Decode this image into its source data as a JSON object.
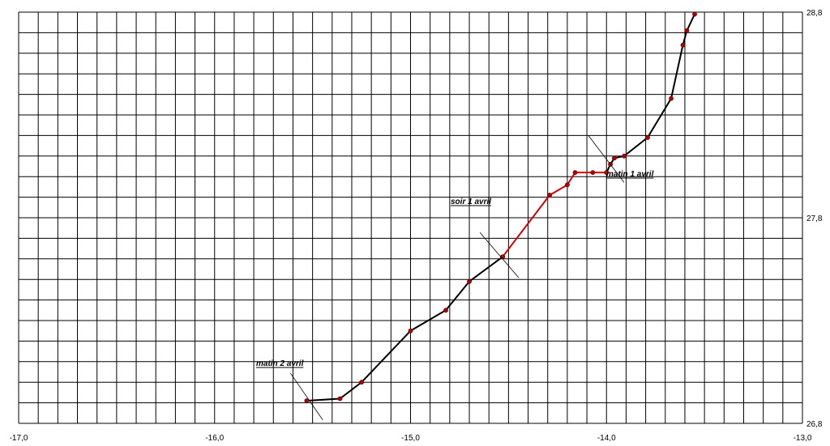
{
  "chart_data": {
    "type": "line",
    "title": "",
    "xlabel": "",
    "ylabel": "",
    "xlim": [
      -17.0,
      -13.0
    ],
    "ylim": [
      26.8,
      28.8
    ],
    "x_step": 0.1,
    "y_step": 0.1,
    "grid": true,
    "x_tick_labels": [
      {
        "value": -17.0,
        "label": "-17,0"
      },
      {
        "value": -16.0,
        "label": "-16,0"
      },
      {
        "value": -15.0,
        "label": "-15,0"
      },
      {
        "value": -14.0,
        "label": "-14,0"
      },
      {
        "value": -13.0,
        "label": "-13,0"
      }
    ],
    "y_tick_labels": [
      {
        "value": 28.8,
        "label": "28,8"
      },
      {
        "value": 27.8,
        "label": "27,8"
      },
      {
        "value": 26.8,
        "label": "26,8"
      }
    ],
    "series": [
      {
        "color": "#000000",
        "points": [
          {
            "x": -15.53,
            "y": 26.91
          },
          {
            "x": -15.36,
            "y": 26.92
          },
          {
            "x": -15.25,
            "y": 27.0
          },
          {
            "x": -15.0,
            "y": 27.25
          },
          {
            "x": -14.82,
            "y": 27.35
          },
          {
            "x": -14.7,
            "y": 27.49
          },
          {
            "x": -14.53,
            "y": 27.61
          }
        ]
      },
      {
        "color": "#d40000",
        "points": [
          {
            "x": -14.53,
            "y": 27.61
          },
          {
            "x": -14.29,
            "y": 27.91
          },
          {
            "x": -14.2,
            "y": 27.96
          },
          {
            "x": -14.16,
            "y": 28.02
          },
          {
            "x": -14.07,
            "y": 28.02
          },
          {
            "x": -14.0,
            "y": 28.02
          }
        ]
      },
      {
        "color": "#000000",
        "points": [
          {
            "x": -14.0,
            "y": 28.02
          },
          {
            "x": -13.98,
            "y": 28.06
          },
          {
            "x": -13.96,
            "y": 28.09
          },
          {
            "x": -13.91,
            "y": 28.1
          },
          {
            "x": -13.79,
            "y": 28.19
          },
          {
            "x": -13.67,
            "y": 28.38
          },
          {
            "x": -13.61,
            "y": 28.64
          },
          {
            "x": -13.59,
            "y": 28.71
          },
          {
            "x": -13.55,
            "y": 28.79
          }
        ]
      }
    ],
    "marker_color": "#b00000",
    "annotations": [
      {
        "text": "matin 1 avril",
        "x": -13.96,
        "y": 28.09
      },
      {
        "text": "soir 1 avril",
        "x": -14.53,
        "y": 27.61
      },
      {
        "text": "matin 2 avril",
        "x": -15.53,
        "y": 26.91
      }
    ]
  }
}
